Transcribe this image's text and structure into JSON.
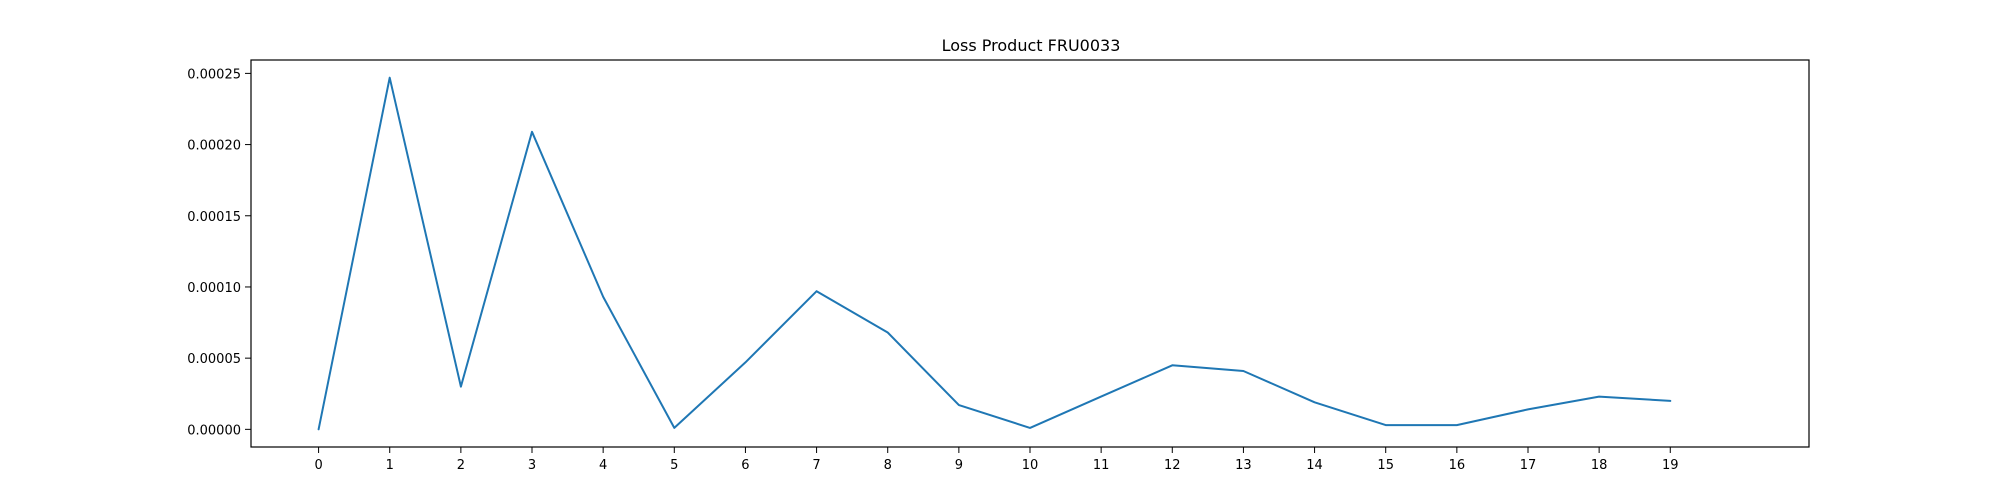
{
  "chart_data": {
    "type": "line",
    "title": "Loss Product FRU0033",
    "xlabel": "",
    "ylabel": "",
    "x": [
      0,
      1,
      2,
      3,
      4,
      5,
      6,
      7,
      8,
      9,
      10,
      11,
      12,
      13,
      14,
      15,
      16,
      17,
      18,
      19
    ],
    "x_tick_labels": [
      "0",
      "1",
      "2",
      "3",
      "4",
      "5",
      "6",
      "7",
      "8",
      "9",
      "10",
      "11",
      "12",
      "13",
      "14",
      "15",
      "16",
      "17",
      "18",
      "19"
    ],
    "series": [
      {
        "values": [
          0.0,
          0.000247,
          3e-05,
          0.000209,
          9.3e-05,
          1e-06,
          4.7e-05,
          9.7e-05,
          6.8e-05,
          1.7e-05,
          1e-06,
          2.3e-05,
          4.5e-05,
          4.1e-05,
          1.9e-05,
          3e-06,
          3e-06,
          1.4e-05,
          2.3e-05,
          2e-05
        ],
        "color": "#1f77b4"
      }
    ],
    "y_ticks": [
      0.0,
      5e-05,
      0.0001,
      0.00015,
      0.0002,
      0.00025
    ],
    "y_tick_labels": [
      "0.00000",
      "0.00005",
      "0.00010",
      "0.00015",
      "0.00020",
      "0.00025"
    ],
    "xlim": [
      -0.95,
      20.95
    ],
    "ylim": [
      -1.24e-05,
      0.0002594
    ],
    "grid": false,
    "legend": "none"
  }
}
